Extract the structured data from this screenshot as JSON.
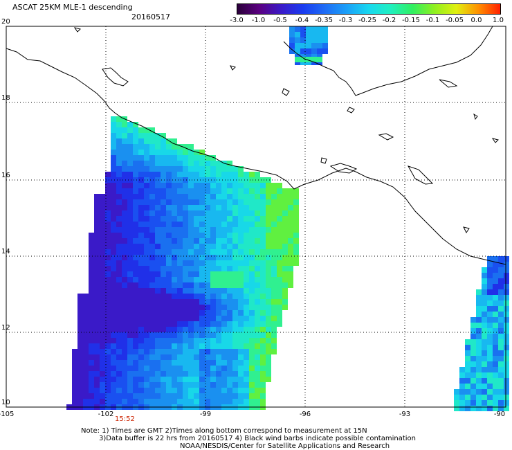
{
  "header": {
    "title": "ASCAT 25KM MLE-1 descending",
    "date": "20160517"
  },
  "colorbar": {
    "ticks": [
      "-3.0",
      "-1.0",
      "-0.5",
      "-0.4",
      "-0.35",
      "-0.3",
      "-0.25",
      "-0.2",
      "-0.15",
      "-0.1",
      "-0.05",
      "0.0",
      "1.0"
    ],
    "colors": [
      "#2a003a",
      "#5a0080",
      "#3a1ac8",
      "#1a3cf0",
      "#1f6cf5",
      "#1aa0f8",
      "#18d8f0",
      "#20f0c0",
      "#30f060",
      "#90f020",
      "#e0f010",
      "#ff9000",
      "#ff2000"
    ]
  },
  "axes": {
    "lat_labels": [
      "20",
      "18",
      "16",
      "14",
      "12",
      "10"
    ],
    "lon_labels": [
      "-105",
      "-102",
      "-99",
      "-96",
      "-93",
      "-90"
    ]
  },
  "time_label": "15:52",
  "notes": {
    "line1": "Note: 1) Times are GMT 2)Times along bottom correspond to measurement at 15N",
    "line2": "3)Data buffer is 22 hrs from 20160517 4) Black wind barbs indicate possible contamination",
    "line3": "NOAA/NESDIS/Center for Satellite Applications and Research"
  }
}
